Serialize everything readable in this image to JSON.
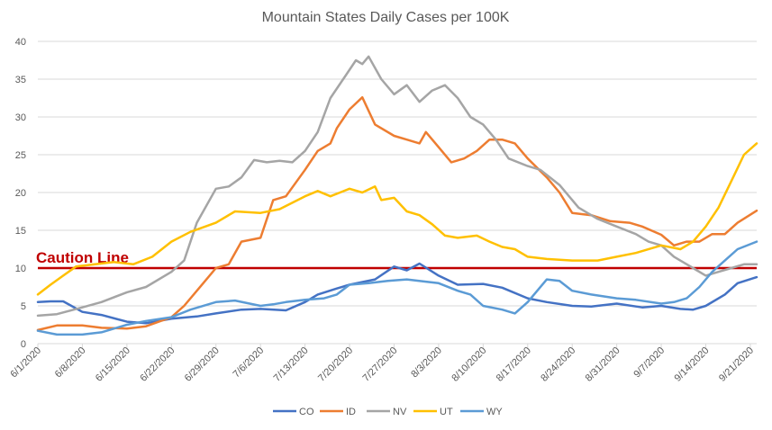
{
  "chart_data": {
    "type": "line",
    "title": "Mountain States Daily Cases per 100K",
    "xlabel": "",
    "ylabel": "",
    "ylim": [
      0,
      40
    ],
    "yticks": [
      0,
      5,
      10,
      15,
      20,
      25,
      30,
      35,
      40
    ],
    "xlim": [
      "6/1/2020",
      "9/22/2020"
    ],
    "xticks": [
      "6/1/2020",
      "6/8/2020",
      "6/15/2020",
      "6/22/2020",
      "6/29/2020",
      "7/6/2020",
      "7/13/2020",
      "7/20/2020",
      "7/27/2020",
      "8/3/2020",
      "8/10/2020",
      "8/17/2020",
      "8/24/2020",
      "8/31/2020",
      "9/7/2020",
      "9/14/2020",
      "9/21/2020"
    ],
    "grid": "horizontal",
    "legend_position": "bottom",
    "reference_line": {
      "label": "Caution Line",
      "value": 10,
      "color": "#C00000"
    },
    "series": [
      {
        "name": "CO",
        "color": "#4472C4",
        "points": [
          [
            "6/1/2020",
            5.5
          ],
          [
            "6/3/2020",
            5.6
          ],
          [
            "6/5/2020",
            5.6
          ],
          [
            "6/8/2020",
            4.2
          ],
          [
            "6/11/2020",
            3.8
          ],
          [
            "6/15/2020",
            2.9
          ],
          [
            "6/18/2020",
            2.7
          ],
          [
            "6/22/2020",
            3.3
          ],
          [
            "6/26/2020",
            3.6
          ],
          [
            "6/29/2020",
            4.0
          ],
          [
            "7/3/2020",
            4.5
          ],
          [
            "7/6/2020",
            4.6
          ],
          [
            "7/10/2020",
            4.4
          ],
          [
            "7/13/2020",
            5.5
          ],
          [
            "7/15/2020",
            6.5
          ],
          [
            "7/18/2020",
            7.3
          ],
          [
            "7/20/2020",
            7.8
          ],
          [
            "7/24/2020",
            8.5
          ],
          [
            "7/27/2020",
            10.2
          ],
          [
            "7/29/2020",
            9.7
          ],
          [
            "7/31/2020",
            10.6
          ],
          [
            "8/3/2020",
            9.0
          ],
          [
            "8/6/2020",
            7.8
          ],
          [
            "8/10/2020",
            7.9
          ],
          [
            "8/13/2020",
            7.4
          ],
          [
            "8/17/2020",
            6.0
          ],
          [
            "8/20/2020",
            5.5
          ],
          [
            "8/24/2020",
            5.0
          ],
          [
            "8/27/2020",
            4.9
          ],
          [
            "8/31/2020",
            5.3
          ],
          [
            "9/4/2020",
            4.8
          ],
          [
            "9/7/2020",
            5.0
          ],
          [
            "9/10/2020",
            4.6
          ],
          [
            "9/12/2020",
            4.5
          ],
          [
            "9/14/2020",
            5.0
          ],
          [
            "9/17/2020",
            6.5
          ],
          [
            "9/19/2020",
            8.0
          ],
          [
            "9/22/2020",
            8.8
          ]
        ]
      },
      {
        "name": "ID",
        "color": "#ED7D31",
        "points": [
          [
            "6/1/2020",
            1.8
          ],
          [
            "6/4/2020",
            2.4
          ],
          [
            "6/8/2020",
            2.4
          ],
          [
            "6/11/2020",
            2.1
          ],
          [
            "6/15/2020",
            2.0
          ],
          [
            "6/18/2020",
            2.3
          ],
          [
            "6/22/2020",
            3.5
          ],
          [
            "6/24/2020",
            5.0
          ],
          [
            "6/27/2020",
            8.0
          ],
          [
            "6/29/2020",
            10.0
          ],
          [
            "7/1/2020",
            10.5
          ],
          [
            "7/3/2020",
            13.5
          ],
          [
            "7/6/2020",
            14.0
          ],
          [
            "7/8/2020",
            19.0
          ],
          [
            "7/10/2020",
            19.5
          ],
          [
            "7/13/2020",
            23.0
          ],
          [
            "7/15/2020",
            25.5
          ],
          [
            "7/17/2020",
            26.5
          ],
          [
            "7/18/2020",
            28.5
          ],
          [
            "7/20/2020",
            31.0
          ],
          [
            "7/22/2020",
            32.6
          ],
          [
            "7/24/2020",
            29.0
          ],
          [
            "7/27/2020",
            27.5
          ],
          [
            "7/29/2020",
            27.0
          ],
          [
            "7/31/2020",
            26.5
          ],
          [
            "8/1/2020",
            28.0
          ],
          [
            "8/3/2020",
            26.0
          ],
          [
            "8/5/2020",
            24.0
          ],
          [
            "8/7/2020",
            24.5
          ],
          [
            "8/9/2020",
            25.5
          ],
          [
            "8/11/2020",
            27.0
          ],
          [
            "8/13/2020",
            27.0
          ],
          [
            "8/15/2020",
            26.5
          ],
          [
            "8/17/2020",
            24.5
          ],
          [
            "8/20/2020",
            22.0
          ],
          [
            "8/22/2020",
            20.0
          ],
          [
            "8/24/2020",
            17.3
          ],
          [
            "8/27/2020",
            17.0
          ],
          [
            "8/30/2020",
            16.2
          ],
          [
            "9/2/2020",
            16.0
          ],
          [
            "9/4/2020",
            15.5
          ],
          [
            "9/7/2020",
            14.4
          ],
          [
            "9/9/2020",
            13.0
          ],
          [
            "9/11/2020",
            13.5
          ],
          [
            "9/13/2020",
            13.5
          ],
          [
            "9/15/2020",
            14.5
          ],
          [
            "9/17/2020",
            14.5
          ],
          [
            "9/19/2020",
            16.0
          ],
          [
            "9/22/2020",
            17.6
          ]
        ]
      },
      {
        "name": "NV",
        "color": "#A5A5A5",
        "points": [
          [
            "6/1/2020",
            3.7
          ],
          [
            "6/4/2020",
            3.9
          ],
          [
            "6/8/2020",
            4.8
          ],
          [
            "6/11/2020",
            5.5
          ],
          [
            "6/15/2020",
            6.8
          ],
          [
            "6/18/2020",
            7.5
          ],
          [
            "6/22/2020",
            9.5
          ],
          [
            "6/24/2020",
            11.0
          ],
          [
            "6/26/2020",
            16.0
          ],
          [
            "6/29/2020",
            20.5
          ],
          [
            "7/1/2020",
            20.8
          ],
          [
            "7/3/2020",
            22.0
          ],
          [
            "7/5/2020",
            24.3
          ],
          [
            "7/7/2020",
            24.0
          ],
          [
            "7/9/2020",
            24.2
          ],
          [
            "7/11/2020",
            24.0
          ],
          [
            "7/13/2020",
            25.5
          ],
          [
            "7/15/2020",
            28.0
          ],
          [
            "7/17/2020",
            32.5
          ],
          [
            "7/19/2020",
            35.0
          ],
          [
            "7/21/2020",
            37.5
          ],
          [
            "7/22/2020",
            37.0
          ],
          [
            "7/23/2020",
            38.0
          ],
          [
            "7/25/2020",
            35.0
          ],
          [
            "7/27/2020",
            33.0
          ],
          [
            "7/29/2020",
            34.2
          ],
          [
            "7/31/2020",
            32.0
          ],
          [
            "8/2/2020",
            33.5
          ],
          [
            "8/4/2020",
            34.2
          ],
          [
            "8/6/2020",
            32.5
          ],
          [
            "8/8/2020",
            30.0
          ],
          [
            "8/10/2020",
            29.0
          ],
          [
            "8/12/2020",
            27.0
          ],
          [
            "8/14/2020",
            24.5
          ],
          [
            "8/17/2020",
            23.5
          ],
          [
            "8/19/2020",
            23.0
          ],
          [
            "8/22/2020",
            21.0
          ],
          [
            "8/25/2020",
            18.0
          ],
          [
            "8/28/2020",
            16.5
          ],
          [
            "8/31/2020",
            15.5
          ],
          [
            "9/3/2020",
            14.5
          ],
          [
            "9/5/2020",
            13.5
          ],
          [
            "9/7/2020",
            13.0
          ],
          [
            "9/9/2020",
            11.5
          ],
          [
            "9/12/2020",
            10.0
          ],
          [
            "9/14/2020",
            9.0
          ],
          [
            "9/16/2020",
            9.5
          ],
          [
            "9/18/2020",
            10.0
          ],
          [
            "9/20/2020",
            10.5
          ],
          [
            "9/22/2020",
            10.5
          ]
        ]
      },
      {
        "name": "UT",
        "color": "#FFC000",
        "points": [
          [
            "6/1/2020",
            6.5
          ],
          [
            "6/3/2020",
            7.8
          ],
          [
            "6/5/2020",
            9.0
          ],
          [
            "6/7/2020",
            10.2
          ],
          [
            "6/10/2020",
            10.5
          ],
          [
            "6/13/2020",
            10.8
          ],
          [
            "6/16/2020",
            10.5
          ],
          [
            "6/19/2020",
            11.5
          ],
          [
            "6/22/2020",
            13.5
          ],
          [
            "6/25/2020",
            14.8
          ],
          [
            "6/29/2020",
            16.0
          ],
          [
            "7/2/2020",
            17.5
          ],
          [
            "7/6/2020",
            17.3
          ],
          [
            "7/9/2020",
            17.8
          ],
          [
            "7/13/2020",
            19.5
          ],
          [
            "7/15/2020",
            20.2
          ],
          [
            "7/17/2020",
            19.5
          ],
          [
            "7/20/2020",
            20.5
          ],
          [
            "7/22/2020",
            20.0
          ],
          [
            "7/24/2020",
            20.8
          ],
          [
            "7/25/2020",
            19.0
          ],
          [
            "7/27/2020",
            19.3
          ],
          [
            "7/29/2020",
            17.5
          ],
          [
            "7/31/2020",
            17.0
          ],
          [
            "8/2/2020",
            15.8
          ],
          [
            "8/4/2020",
            14.3
          ],
          [
            "8/6/2020",
            14.0
          ],
          [
            "8/9/2020",
            14.3
          ],
          [
            "8/11/2020",
            13.5
          ],
          [
            "8/13/2020",
            12.8
          ],
          [
            "8/15/2020",
            12.5
          ],
          [
            "8/17/2020",
            11.5
          ],
          [
            "8/20/2020",
            11.2
          ],
          [
            "8/24/2020",
            11.0
          ],
          [
            "8/28/2020",
            11.0
          ],
          [
            "8/31/2020",
            11.5
          ],
          [
            "9/3/2020",
            12.0
          ],
          [
            "9/7/2020",
            13.0
          ],
          [
            "9/10/2020",
            12.5
          ],
          [
            "9/12/2020",
            13.5
          ],
          [
            "9/14/2020",
            15.5
          ],
          [
            "9/16/2020",
            18.0
          ],
          [
            "9/18/2020",
            21.5
          ],
          [
            "9/20/2020",
            25.0
          ],
          [
            "9/22/2020",
            26.5
          ]
        ]
      },
      {
        "name": "WY",
        "color": "#5B9BD5",
        "points": [
          [
            "6/1/2020",
            1.7
          ],
          [
            "6/4/2020",
            1.2
          ],
          [
            "6/8/2020",
            1.2
          ],
          [
            "6/11/2020",
            1.5
          ],
          [
            "6/15/2020",
            2.5
          ],
          [
            "6/18/2020",
            3.0
          ],
          [
            "6/22/2020",
            3.5
          ],
          [
            "6/25/2020",
            4.5
          ],
          [
            "6/29/2020",
            5.5
          ],
          [
            "7/2/2020",
            5.7
          ],
          [
            "7/6/2020",
            5.0
          ],
          [
            "7/8/2020",
            5.2
          ],
          [
            "7/10/2020",
            5.5
          ],
          [
            "7/13/2020",
            5.8
          ],
          [
            "7/16/2020",
            6.0
          ],
          [
            "7/18/2020",
            6.5
          ],
          [
            "7/20/2020",
            7.8
          ],
          [
            "7/23/2020",
            8.0
          ],
          [
            "7/26/2020",
            8.3
          ],
          [
            "7/29/2020",
            8.5
          ],
          [
            "8/1/2020",
            8.2
          ],
          [
            "8/3/2020",
            8.0
          ],
          [
            "8/6/2020",
            7.0
          ],
          [
            "8/8/2020",
            6.5
          ],
          [
            "8/10/2020",
            5.0
          ],
          [
            "8/13/2020",
            4.5
          ],
          [
            "8/15/2020",
            4.0
          ],
          [
            "8/17/2020",
            5.5
          ],
          [
            "8/20/2020",
            8.5
          ],
          [
            "8/22/2020",
            8.3
          ],
          [
            "8/24/2020",
            7.0
          ],
          [
            "8/27/2020",
            6.5
          ],
          [
            "8/31/2020",
            6.0
          ],
          [
            "9/3/2020",
            5.8
          ],
          [
            "9/7/2020",
            5.3
          ],
          [
            "9/9/2020",
            5.5
          ],
          [
            "9/11/2020",
            6.0
          ],
          [
            "9/13/2020",
            7.5
          ],
          [
            "9/15/2020",
            9.5
          ],
          [
            "9/17/2020",
            11.0
          ],
          [
            "9/19/2020",
            12.5
          ],
          [
            "9/22/2020",
            13.5
          ]
        ]
      }
    ]
  }
}
